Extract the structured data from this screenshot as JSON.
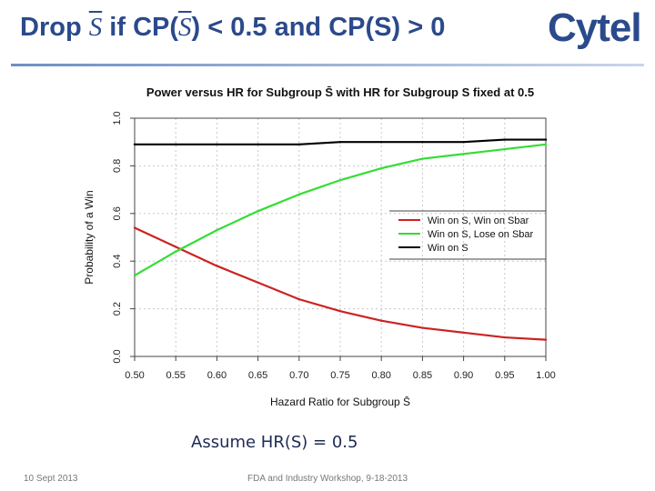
{
  "slide": {
    "title_prefix": "Drop",
    "title_s": "S",
    "title_mid": " if CP(",
    "title_suffix": ") < 0.5 and CP(S) > 0",
    "logo": "Cytel",
    "assumption": "Assume HR(S) = 0.5",
    "footer_date": "10 Sept 2013",
    "footer_event": "FDA and Industry Workshop, 9-18-2013"
  },
  "chart_data": {
    "type": "line",
    "title": "Power versus HR for Subgroup S̄ with HR for Subgroup S fixed at 0.5",
    "xlabel": "Hazard Ratio for Subgroup S̄",
    "ylabel": "Probability of a Win",
    "xlim": [
      0.5,
      1.0
    ],
    "ylim": [
      0.0,
      1.0
    ],
    "x_ticks": [
      "0.50",
      "0.55",
      "0.60",
      "0.65",
      "0.70",
      "0.75",
      "0.80",
      "0.85",
      "0.90",
      "0.95",
      "1.00"
    ],
    "y_ticks": [
      "0.0",
      "0.2",
      "0.4",
      "0.6",
      "0.8",
      "1.0"
    ],
    "grid": true,
    "legend_position": "right",
    "x": [
      0.5,
      0.55,
      0.6,
      0.65,
      0.7,
      0.75,
      0.8,
      0.85,
      0.9,
      0.95,
      1.0
    ],
    "series": [
      {
        "name": "Win on S, Win on Sbar",
        "color": "#cc2222",
        "values": [
          0.54,
          0.46,
          0.38,
          0.31,
          0.24,
          0.19,
          0.15,
          0.12,
          0.1,
          0.08,
          0.07
        ]
      },
      {
        "name": "Win on S, Lose on Sbar",
        "color": "#33dd33",
        "values": [
          0.34,
          0.44,
          0.53,
          0.61,
          0.68,
          0.74,
          0.79,
          0.83,
          0.85,
          0.87,
          0.89
        ]
      },
      {
        "name": "Win on S",
        "color": "#000000",
        "values": [
          0.89,
          0.89,
          0.89,
          0.89,
          0.89,
          0.9,
          0.9,
          0.9,
          0.9,
          0.91,
          0.91
        ]
      }
    ]
  }
}
